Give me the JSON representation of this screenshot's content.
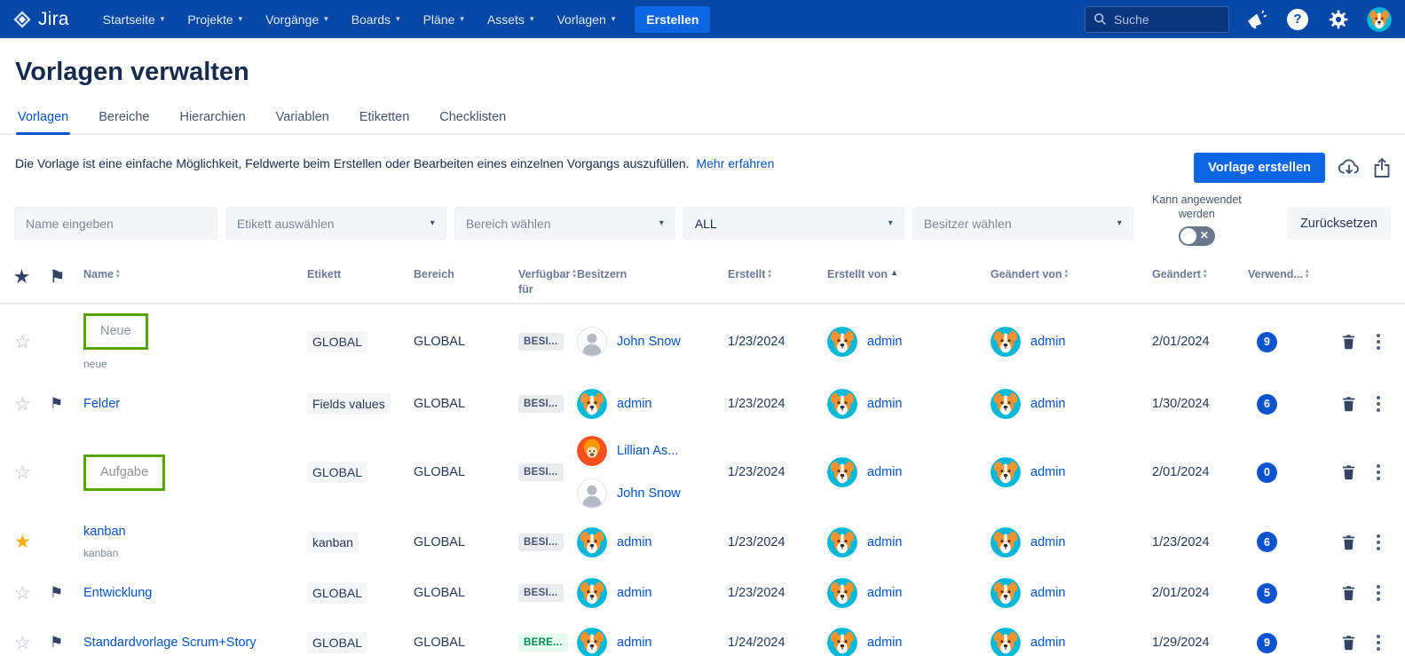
{
  "colors": {
    "navbar": "#0747A6",
    "accent": "#0052CC",
    "button_blue": "#0C66E4",
    "highlight_box_green": "#57A300",
    "badge_blue": "#0C53CF",
    "star_yellow": "#FFAB00",
    "avail_chip_green_bg": "#E3FCEF",
    "avail_chip_green_text": "#00875A"
  },
  "navbar": {
    "brand": "Jira",
    "items": [
      "Startseite",
      "Projekte",
      "Vorgänge",
      "Boards",
      "Pläne",
      "Assets",
      "Vorlagen"
    ],
    "create_label": "Erstellen",
    "search_placeholder": "Suche",
    "icons": [
      "megaphone-icon",
      "help-icon",
      "gear-icon",
      "user-avatar"
    ]
  },
  "page": {
    "title": "Vorlagen verwalten",
    "tabs": [
      {
        "label": "Vorlagen",
        "active": true
      },
      {
        "label": "Bereiche",
        "active": false
      },
      {
        "label": "Hierarchien",
        "active": false
      },
      {
        "label": "Variablen",
        "active": false
      },
      {
        "label": "Etiketten",
        "active": false
      },
      {
        "label": "Checklisten",
        "active": false
      }
    ],
    "description": "Die Vorlage ist eine einfache Möglichkeit, Feldwerte beim Erstellen oder Bearbeiten eines einzelnen Vorgangs auszufüllen.",
    "learn_more": "Mehr erfahren",
    "create_button": "Vorlage erstellen"
  },
  "filters": {
    "name_placeholder": "Name eingeben",
    "selects": [
      {
        "name": "label-filter-select",
        "value": "Etikett auswählen",
        "has_value": false
      },
      {
        "name": "area-filter-select",
        "value": "Bereich wählen",
        "has_value": false
      },
      {
        "name": "status-filter-select",
        "value": "ALL",
        "has_value": true
      },
      {
        "name": "owner-filter-select",
        "value": "Besitzer wählen",
        "has_value": false
      }
    ],
    "toggle_label": "Kann angewendet werden",
    "toggle_state": "off",
    "reset_button": "Zurücksetzen"
  },
  "table": {
    "headers": [
      {
        "label": "Name",
        "sort": "both"
      },
      {
        "label": "Etikett",
        "sort": "none"
      },
      {
        "label": "Bereich",
        "sort": "none"
      },
      {
        "label": "Verfügbar für",
        "sort": "both"
      },
      {
        "label": "Besitzern",
        "sort": "none"
      },
      {
        "label": "Erstellt",
        "sort": "both"
      },
      {
        "label": "Erstellt von",
        "sort": "asc"
      },
      {
        "label": "Geändert von",
        "sort": "both"
      },
      {
        "label": "Geändert",
        "sort": "both"
      },
      {
        "label": "Verwend...",
        "sort": "both"
      }
    ],
    "rows": [
      {
        "starred": false,
        "flagged": false,
        "name": "Neue",
        "name_style": "muted",
        "highlighted": true,
        "subtitle": "neue",
        "label": "GLOBAL",
        "bereich": "GLOBAL",
        "avail": "BESI...",
        "avail_type": "gray",
        "owners": [
          {
            "name": "John Snow",
            "avatar": "person"
          }
        ],
        "created": "1/23/2024",
        "created_by": "admin",
        "modified_by": "admin",
        "modified": "2/01/2024",
        "used": "9"
      },
      {
        "starred": false,
        "flagged": true,
        "name": "Felder",
        "name_style": "link",
        "highlighted": false,
        "subtitle": "",
        "label": "Fields values",
        "bereich": "GLOBAL",
        "avail": "BESI...",
        "avail_type": "gray",
        "owners": [
          {
            "name": "admin",
            "avatar": "dog"
          }
        ],
        "created": "1/23/2024",
        "created_by": "admin",
        "modified_by": "admin",
        "modified": "1/30/2024",
        "used": "6"
      },
      {
        "starred": false,
        "flagged": false,
        "name": "Aufgabe",
        "name_style": "muted",
        "highlighted": true,
        "subtitle": "",
        "label": "GLOBAL",
        "bereich": "GLOBAL",
        "avail": "BESI...",
        "avail_type": "gray",
        "owners": [
          {
            "name": "Lillian As...",
            "avatar": "lillian"
          },
          {
            "name": "John Snow",
            "avatar": "person"
          }
        ],
        "created": "1/23/2024",
        "created_by": "admin",
        "modified_by": "admin",
        "modified": "2/01/2024",
        "used": "0"
      },
      {
        "starred": true,
        "flagged": false,
        "name": "kanban",
        "name_style": "link",
        "highlighted": false,
        "subtitle": "kanban",
        "label": "kanban",
        "bereich": "GLOBAL",
        "avail": "BESI...",
        "avail_type": "gray",
        "owners": [
          {
            "name": "admin",
            "avatar": "dog"
          }
        ],
        "created": "1/23/2024",
        "created_by": "admin",
        "modified_by": "admin",
        "modified": "1/23/2024",
        "used": "6"
      },
      {
        "starred": false,
        "flagged": true,
        "name": "Entwicklung",
        "name_style": "link",
        "highlighted": false,
        "subtitle": "",
        "label": "GLOBAL",
        "bereich": "GLOBAL",
        "avail": "BESI...",
        "avail_type": "gray",
        "owners": [
          {
            "name": "admin",
            "avatar": "dog"
          }
        ],
        "created": "1/23/2024",
        "created_by": "admin",
        "modified_by": "admin",
        "modified": "2/01/2024",
        "used": "5"
      },
      {
        "starred": false,
        "flagged": true,
        "name": "Standardvorlage Scrum+Story",
        "name_style": "link",
        "highlighted": false,
        "subtitle": "",
        "label": "GLOBAL",
        "bereich": "GLOBAL",
        "avail": "BERE...",
        "avail_type": "green",
        "owners": [
          {
            "name": "admin",
            "avatar": "dog"
          }
        ],
        "created": "1/24/2024",
        "created_by": "admin",
        "modified_by": "admin",
        "modified": "1/29/2024",
        "used": "9"
      }
    ]
  }
}
